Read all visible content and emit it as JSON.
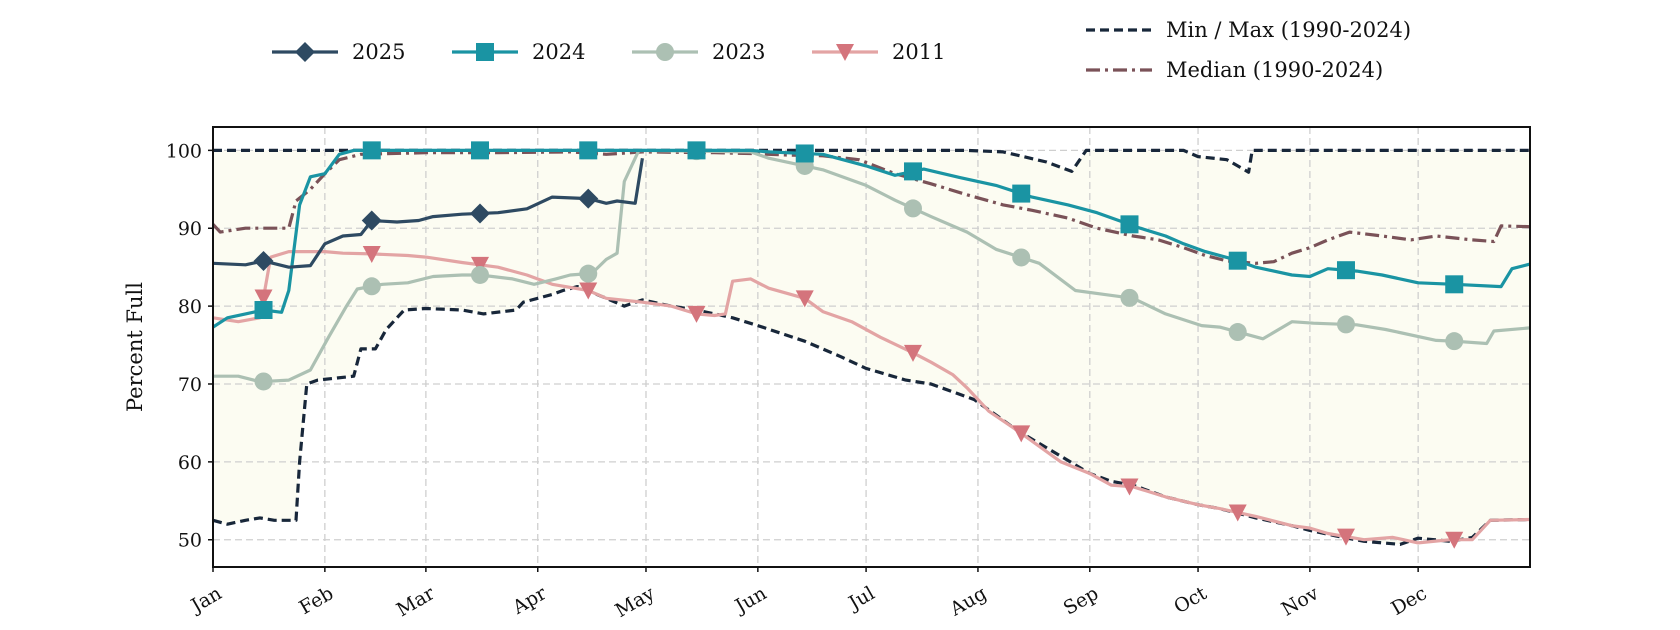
{
  "chart_data": {
    "type": "line",
    "ylabel": "Percent Full",
    "ylim": [
      46.5,
      103
    ],
    "xlim": [
      1,
      366
    ],
    "yticks": [
      50,
      60,
      70,
      80,
      90,
      100
    ],
    "xticks": [
      {
        "label": "Jan",
        "day": 1
      },
      {
        "label": "Feb",
        "day": 32
      },
      {
        "label": "Mar",
        "day": 60
      },
      {
        "label": "Apr",
        "day": 91
      },
      {
        "label": "May",
        "day": 121
      },
      {
        "label": "Jun",
        "day": 152
      },
      {
        "label": "Jul",
        "day": 182
      },
      {
        "label": "Aug",
        "day": 213
      },
      {
        "label": "Sep",
        "day": 244
      },
      {
        "label": "Oct",
        "day": 274
      },
      {
        "label": "Nov",
        "day": 305
      },
      {
        "label": "Dec",
        "day": 335
      }
    ],
    "grid": true,
    "legend_placement": "top",
    "background": "#fcfcf2",
    "series": [
      {
        "name": "2025",
        "color": "#2e4a62",
        "style": "solid",
        "marker": "diamond",
        "points": [
          [
            1,
            85.5
          ],
          [
            10,
            85.3
          ],
          [
            15,
            85.8
          ],
          [
            22,
            85.0
          ],
          [
            28,
            85.2
          ],
          [
            32,
            88.0
          ],
          [
            37,
            89.0
          ],
          [
            42,
            89.2
          ],
          [
            45,
            91.0
          ],
          [
            52,
            90.8
          ],
          [
            58,
            91.0
          ],
          [
            62,
            91.5
          ],
          [
            70,
            91.8
          ],
          [
            80,
            92.0
          ],
          [
            88,
            92.5
          ],
          [
            95,
            94.0
          ],
          [
            105,
            93.8
          ],
          [
            110,
            93.2
          ],
          [
            113,
            93.5
          ],
          [
            118,
            93.2
          ],
          [
            120,
            99.0
          ]
        ]
      },
      {
        "name": "2024",
        "color": "#1a94a3",
        "style": "solid",
        "marker": "square",
        "points": [
          [
            1,
            77.3
          ],
          [
            5,
            78.5
          ],
          [
            10,
            79.0
          ],
          [
            15,
            79.5
          ],
          [
            20,
            79.2
          ],
          [
            22,
            82
          ],
          [
            25,
            93
          ],
          [
            28,
            96.6
          ],
          [
            32,
            97.0
          ],
          [
            36,
            99.5
          ],
          [
            40,
            100
          ],
          [
            80,
            100
          ],
          [
            120,
            100
          ],
          [
            150,
            100
          ],
          [
            155,
            99.8
          ],
          [
            170,
            99.5
          ],
          [
            182,
            98.0
          ],
          [
            190,
            96.8
          ],
          [
            198,
            97.6
          ],
          [
            208,
            96.5
          ],
          [
            218,
            95.5
          ],
          [
            228,
            94.0
          ],
          [
            238,
            93.0
          ],
          [
            246,
            92.0
          ],
          [
            252,
            91.0
          ],
          [
            258,
            90.0
          ],
          [
            265,
            89.0
          ],
          [
            270,
            88.0
          ],
          [
            276,
            87.0
          ],
          [
            284,
            86.0
          ],
          [
            290,
            85.0
          ],
          [
            300,
            84.0
          ],
          [
            305,
            83.8
          ],
          [
            310,
            84.8
          ],
          [
            318,
            84.5
          ],
          [
            325,
            84.0
          ],
          [
            335,
            83.0
          ],
          [
            345,
            82.8
          ],
          [
            358,
            82.5
          ],
          [
            361,
            84.8
          ],
          [
            366,
            85.4
          ]
        ]
      },
      {
        "name": "2023",
        "color": "#acc0b3",
        "style": "solid",
        "marker": "circle",
        "points": [
          [
            1,
            71.0
          ],
          [
            8,
            71.0
          ],
          [
            14,
            70.3
          ],
          [
            22,
            70.5
          ],
          [
            28,
            71.8
          ],
          [
            33,
            76.0
          ],
          [
            38,
            80.0
          ],
          [
            41,
            82.2
          ],
          [
            48,
            82.8
          ],
          [
            55,
            83.0
          ],
          [
            62,
            83.8
          ],
          [
            70,
            84.0
          ],
          [
            75,
            84.0
          ],
          [
            84,
            83.5
          ],
          [
            90,
            82.8
          ],
          [
            96,
            83.5
          ],
          [
            100,
            84.0
          ],
          [
            106,
            84.2
          ],
          [
            110,
            86.0
          ],
          [
            113,
            86.8
          ],
          [
            115,
            96
          ],
          [
            119,
            100
          ],
          [
            150,
            99.8
          ],
          [
            155,
            99.0
          ],
          [
            170,
            97.5
          ],
          [
            182,
            95.5
          ],
          [
            190,
            93.6
          ],
          [
            200,
            91.5
          ],
          [
            210,
            89.5
          ],
          [
            218,
            87.3
          ],
          [
            230,
            85.5
          ],
          [
            240,
            82.0
          ],
          [
            248,
            81.5
          ],
          [
            256,
            81.0
          ],
          [
            265,
            79.0
          ],
          [
            275,
            77.5
          ],
          [
            280,
            77.3
          ],
          [
            292,
            75.8
          ],
          [
            300,
            78.0
          ],
          [
            306,
            77.8
          ],
          [
            318,
            77.6
          ],
          [
            326,
            77.0
          ],
          [
            340,
            75.6
          ],
          [
            345,
            75.5
          ],
          [
            354,
            75.2
          ],
          [
            356,
            76.8
          ],
          [
            366,
            77.2
          ]
        ]
      },
      {
        "name": "2011",
        "color": "#d4747c",
        "style": "solid",
        "marker": "triangle-down",
        "line_color": "#e3a4a4",
        "points": [
          [
            1,
            78.5
          ],
          [
            8,
            78.0
          ],
          [
            14,
            78.5
          ],
          [
            17,
            86.3
          ],
          [
            22,
            87.0
          ],
          [
            32,
            87.0
          ],
          [
            37,
            86.8
          ],
          [
            45,
            86.7
          ],
          [
            55,
            86.5
          ],
          [
            60,
            86.3
          ],
          [
            70,
            85.6
          ],
          [
            80,
            85.0
          ],
          [
            88,
            84.0
          ],
          [
            95,
            82.8
          ],
          [
            105,
            82.0
          ],
          [
            110,
            81.0
          ],
          [
            120,
            80.5
          ],
          [
            128,
            80.0
          ],
          [
            135,
            79.0
          ],
          [
            140,
            78.8
          ],
          [
            143,
            79.0
          ],
          [
            145,
            83.2
          ],
          [
            150,
            83.5
          ],
          [
            155,
            82.3
          ],
          [
            165,
            81.0
          ],
          [
            170,
            79.3
          ],
          [
            178,
            78.0
          ],
          [
            186,
            76.0
          ],
          [
            195,
            74.0
          ],
          [
            200,
            72.8
          ],
          [
            206,
            71.2
          ],
          [
            210,
            69.5
          ],
          [
            216,
            66.5
          ],
          [
            224,
            64.0
          ],
          [
            236,
            60.0
          ],
          [
            244,
            58.5
          ],
          [
            250,
            57.0
          ],
          [
            256,
            56.8
          ],
          [
            265,
            55.5
          ],
          [
            274,
            54.5
          ],
          [
            280,
            54.0
          ],
          [
            290,
            53.0
          ],
          [
            300,
            51.8
          ],
          [
            305,
            51.5
          ],
          [
            310,
            50.8
          ],
          [
            320,
            50.0
          ],
          [
            328,
            50.3
          ],
          [
            335,
            49.6
          ],
          [
            344,
            50.0
          ],
          [
            350,
            50.0
          ],
          [
            355,
            52.5
          ],
          [
            366,
            52.6
          ]
        ]
      },
      {
        "name": "Min / Max (1990-2024)",
        "color": "#18273a",
        "style": "dashed",
        "marker": null,
        "segments": [
          [
            [
              1,
              52.5
            ],
            [
              5,
              52.0
            ],
            [
              10,
              52.5
            ],
            [
              14,
              52.8
            ],
            [
              18,
              52.5
            ],
            [
              24,
              52.5
            ],
            [
              25,
              60
            ],
            [
              26,
              65
            ],
            [
              27,
              70
            ],
            [
              30,
              70.5
            ],
            [
              40,
              71.0
            ],
            [
              42,
              74.5
            ],
            [
              46,
              74.5
            ],
            [
              49,
              77
            ],
            [
              54,
              79.5
            ],
            [
              60,
              79.7
            ],
            [
              70,
              79.5
            ],
            [
              76,
              79.0
            ],
            [
              85,
              79.5
            ],
            [
              87,
              80.5
            ],
            [
              95,
              81.5
            ],
            [
              98,
              82.0
            ],
            [
              102,
              82.5
            ],
            [
              110,
              81.0
            ],
            [
              115,
              80.0
            ],
            [
              120,
              80.8
            ],
            [
              128,
              80.0
            ],
            [
              135,
              79.5
            ],
            [
              145,
              78.5
            ],
            [
              152,
              77.5
            ],
            [
              165,
              75.5
            ],
            [
              175,
              73.5
            ],
            [
              182,
              72.0
            ],
            [
              193,
              70.5
            ],
            [
              200,
              70.0
            ],
            [
              206,
              69.0
            ],
            [
              212,
              68.0
            ],
            [
              218,
              66.0
            ],
            [
              224,
              64.0
            ],
            [
              235,
              61.0
            ],
            [
              244,
              58.5
            ],
            [
              250,
              57.5
            ],
            [
              256,
              57.0
            ],
            [
              265,
              55.5
            ],
            [
              274,
              54.5
            ],
            [
              280,
              54.0
            ],
            [
              290,
              52.8
            ],
            [
              300,
              51.8
            ],
            [
              305,
              51.2
            ],
            [
              312,
              50.5
            ],
            [
              320,
              49.8
            ],
            [
              330,
              49.4
            ],
            [
              335,
              50.2
            ],
            [
              344,
              49.8
            ],
            [
              350,
              50.3
            ],
            [
              355,
              52.5
            ],
            [
              366,
              52.6
            ]
          ],
          [
            [
              1,
              100
            ],
            [
              30,
              100
            ],
            [
              60,
              100
            ],
            [
              120,
              100
            ],
            [
              150,
              100
            ],
            [
              180,
              100
            ],
            [
              210,
              100
            ],
            [
              220,
              99.8
            ],
            [
              232,
              98.5
            ],
            [
              239,
              97.3
            ],
            [
              243,
              100
            ],
            [
              270,
              100
            ],
            [
              274,
              99.2
            ],
            [
              282,
              98.8
            ],
            [
              288,
              97.2
            ],
            [
              289,
              100
            ],
            [
              366,
              100
            ]
          ]
        ]
      },
      {
        "name": "Median (1990-2024)",
        "color": "#7a5258",
        "style": "dashdot",
        "marker": null,
        "points": [
          [
            1,
            90.5
          ],
          [
            3,
            89.5
          ],
          [
            10,
            90.0
          ],
          [
            18,
            90.0
          ],
          [
            22,
            90.0
          ],
          [
            24,
            93.5
          ],
          [
            28,
            95.0
          ],
          [
            32,
            97.0
          ],
          [
            36,
            98.8
          ],
          [
            42,
            99.5
          ],
          [
            60,
            99.7
          ],
          [
            80,
            99.7
          ],
          [
            100,
            99.8
          ],
          [
            110,
            99.5
          ],
          [
            120,
            99.8
          ],
          [
            140,
            99.7
          ],
          [
            150,
            99.6
          ],
          [
            160,
            99.4
          ],
          [
            170,
            99.3
          ],
          [
            180,
            98.8
          ],
          [
            190,
            97.0
          ],
          [
            200,
            95.7
          ],
          [
            210,
            94.3
          ],
          [
            220,
            93.0
          ],
          [
            228,
            92.3
          ],
          [
            238,
            91.3
          ],
          [
            246,
            90.0
          ],
          [
            256,
            89.0
          ],
          [
            263,
            88.5
          ],
          [
            270,
            87.5
          ],
          [
            276,
            86.5
          ],
          [
            282,
            85.8
          ],
          [
            290,
            85.5
          ],
          [
            295,
            85.7
          ],
          [
            300,
            86.8
          ],
          [
            305,
            87.5
          ],
          [
            310,
            88.5
          ],
          [
            316,
            89.5
          ],
          [
            325,
            89.0
          ],
          [
            333,
            88.5
          ],
          [
            340,
            89.0
          ],
          [
            350,
            88.5
          ],
          [
            356,
            88.3
          ],
          [
            358,
            90.3
          ],
          [
            366,
            90.2
          ]
        ]
      }
    ]
  }
}
